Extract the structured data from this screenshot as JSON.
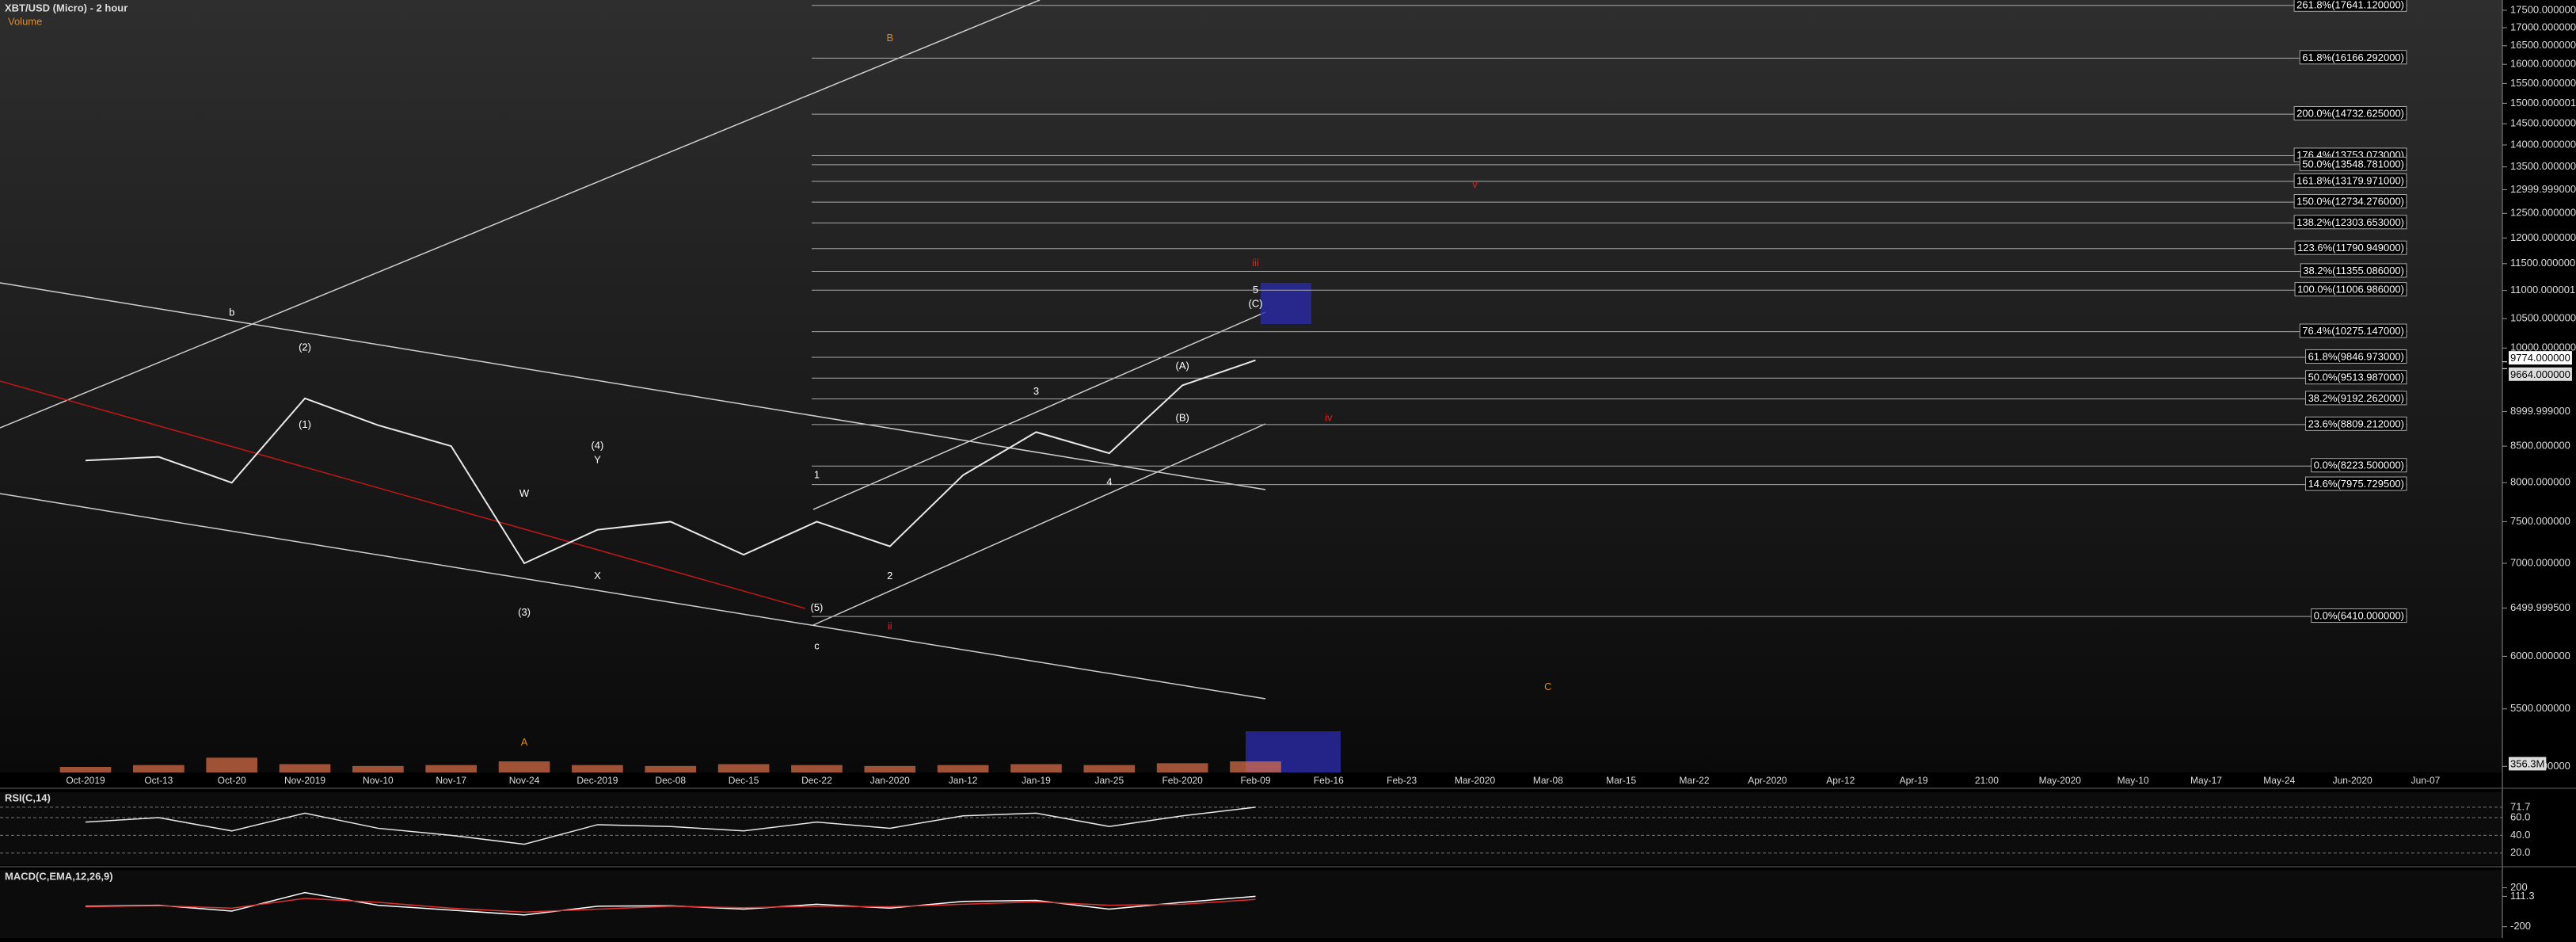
{
  "chart_data": {
    "type": "line",
    "title": "XBT/USD (Micro) - 2 hour",
    "subtitle": "Volume",
    "log_scale": true,
    "categories": [
      "Oct-2019",
      "Oct-13",
      "Oct-20",
      "Nov-2019",
      "Nov-10",
      "Nov-17",
      "Nov-24",
      "Dec-2019",
      "Dec-08",
      "Dec-15",
      "Dec-22",
      "Jan-2020",
      "Jan-12",
      "Jan-19",
      "Jan-25",
      "Feb-2020",
      "Feb-09",
      "Feb-16",
      "Feb-23",
      "Mar-2020",
      "Mar-08",
      "Mar-15",
      "Mar-22",
      "Apr-2020",
      "Apr-12",
      "Apr-19",
      "21:00",
      "May-2020",
      "May-10",
      "May-17",
      "May-24",
      "Jun-2020",
      "Jun-07"
    ],
    "series": [
      {
        "name": "XBT/USD",
        "color": "#e8e8e8",
        "values": [
          8300,
          8350,
          8000,
          9200,
          8800,
          8500,
          7000,
          7400,
          7500,
          7100,
          7500,
          7200,
          8100,
          8700,
          8400,
          9400,
          9800,
          null,
          null,
          null,
          null,
          null,
          null,
          null,
          null,
          null,
          null,
          null,
          null,
          null,
          null,
          null,
          null
        ]
      }
    ],
    "ylim": [
      4950,
      17800
    ],
    "yticks": [
      {
        "value": 17500,
        "label": "17500.000000"
      },
      {
        "value": 17000,
        "label": "17000.000000"
      },
      {
        "value": 16500,
        "label": "16500.000000"
      },
      {
        "value": 16000,
        "label": "16000.000000"
      },
      {
        "value": 15500,
        "label": "15500.000000"
      },
      {
        "value": 15000,
        "label": "15000.000001"
      },
      {
        "value": 14500,
        "label": "14500.000000"
      },
      {
        "value": 14000,
        "label": "14000.000000"
      },
      {
        "value": 13500,
        "label": "13500.000000"
      },
      {
        "value": 12999.999,
        "label": "12999.999000"
      },
      {
        "value": 12500,
        "label": "12500.000000"
      },
      {
        "value": 12000,
        "label": "12000.000000"
      },
      {
        "value": 11500,
        "label": "11500.000000"
      },
      {
        "value": 11000,
        "label": "11000.000001"
      },
      {
        "value": 10500,
        "label": "10500.000000"
      },
      {
        "value": 10000,
        "label": "10000.000000"
      },
      {
        "value": 8999.999,
        "label": "8999.999000"
      },
      {
        "value": 8500,
        "label": "8500.000000"
      },
      {
        "value": 8000,
        "label": "8000.000000"
      },
      {
        "value": 7500,
        "label": "7500.000000"
      },
      {
        "value": 7000,
        "label": "7000.000000"
      },
      {
        "value": 6499.9995,
        "label": "6499.999500"
      },
      {
        "value": 6000,
        "label": "6000.000000"
      },
      {
        "value": 5500,
        "label": "5500.000000"
      },
      {
        "value": 5000,
        "label": "5000.000000"
      }
    ],
    "price_tags": [
      {
        "value": 9774,
        "label": "9774.000000"
      },
      {
        "value": 9664,
        "label": "9664.000000"
      }
    ],
    "fib_levels": [
      {
        "value": 17641.12,
        "label": "261.8%(17641.120000)"
      },
      {
        "value": 16166.292,
        "label": "61.8%(16166.292000)"
      },
      {
        "value": 14732.625,
        "label": "200.0%(14732.625000)"
      },
      {
        "value": 13753.073,
        "label": "176.4%(13753.073000)"
      },
      {
        "value": 13548.781,
        "label": "50.0%(13548.781000)"
      },
      {
        "value": 13179.971,
        "label": "161.8%(13179.971000)"
      },
      {
        "value": 12734.276,
        "label": "150.0%(12734.276000)"
      },
      {
        "value": 12303.653,
        "label": "138.2%(12303.653000)"
      },
      {
        "value": 11790.949,
        "label": "123.6%(11790.949000)"
      },
      {
        "value": 11355.086,
        "label": "38.2%(11355.086000)"
      },
      {
        "value": 11006.986,
        "label": "100.0%(11006.986000)"
      },
      {
        "value": 10275.147,
        "label": "76.4%(10275.147000)"
      },
      {
        "value": 9846.973,
        "label": "61.8%(9846.973000)"
      },
      {
        "value": 9513.987,
        "label": "50.0%(9513.987000)"
      },
      {
        "value": 9192.262,
        "label": "38.2%(9192.262000)"
      },
      {
        "value": 8809.212,
        "label": "23.6%(8809.212000)"
      },
      {
        "value": 8223.5,
        "label": "0.0%(8223.500000)"
      },
      {
        "value": 7975.7295,
        "label": "14.6%(7975.729500)"
      },
      {
        "value": 6410,
        "label": "0.0%(6410.000000)"
      }
    ],
    "annotations": [
      {
        "text": "b",
        "x": "Oct-20",
        "y": 10600,
        "color": "#ffffff"
      },
      {
        "text": "(1)",
        "x": "Nov-2019",
        "y": 8800,
        "color": "#ffffff"
      },
      {
        "text": "(2)",
        "x": "Nov-2019",
        "y": 10000,
        "color": "#ffffff"
      },
      {
        "text": "W",
        "x": "Nov-24",
        "y": 7850,
        "color": "#ffffff"
      },
      {
        "text": "(3)",
        "x": "Nov-24",
        "y": 6450,
        "color": "#ffffff"
      },
      {
        "text": "(4)",
        "x": "Dec-2019",
        "y": 8500,
        "color": "#ffffff"
      },
      {
        "text": "Y",
        "x": "Dec-2019",
        "y": 8300,
        "color": "#ffffff"
      },
      {
        "text": "X",
        "x": "Dec-2019",
        "y": 6850,
        "color": "#ffffff"
      },
      {
        "text": "(5)",
        "x": "Dec-22",
        "y": 6500,
        "color": "#ffffff"
      },
      {
        "text": "c",
        "x": "Dec-22",
        "y": 6100,
        "color": "#ffffff"
      },
      {
        "text": "1",
        "x": "Dec-22",
        "y": 8100,
        "color": "#ffffff"
      },
      {
        "text": "2",
        "x": "Jan-2020",
        "y": 6850,
        "color": "#ffffff"
      },
      {
        "text": "ii",
        "x": "Jan-2020",
        "y": 6300,
        "color": "#e02020"
      },
      {
        "text": "B",
        "x": "Jan-2020",
        "y": 16700,
        "color": "#e08a1a"
      },
      {
        "text": "3",
        "x": "Jan-19",
        "y": 9300,
        "color": "#ffffff"
      },
      {
        "text": "4",
        "x": "Jan-25",
        "y": 8000,
        "color": "#ffffff"
      },
      {
        "text": "(A)",
        "x": "Feb-2020",
        "y": 9700,
        "color": "#ffffff"
      },
      {
        "text": "(B)",
        "x": "Feb-2020",
        "y": 8900,
        "color": "#ffffff"
      },
      {
        "text": "5",
        "x": "Feb-09",
        "y": 11000,
        "color": "#ffffff"
      },
      {
        "text": "(C)",
        "x": "Feb-09",
        "y": 10750,
        "color": "#ffffff"
      },
      {
        "text": "iii",
        "x": "Feb-09",
        "y": 11500,
        "color": "#e02020"
      },
      {
        "text": "iv",
        "x": "Feb-16",
        "y": 8900,
        "color": "#e02020"
      },
      {
        "text": "v",
        "x": "Mar-2020",
        "y": 13100,
        "color": "#e02020"
      },
      {
        "text": "A",
        "x": "Nov-24",
        "y": 5200,
        "color": "#e08a1a"
      },
      {
        "text": "C",
        "x": "Mar-08",
        "y": 5700,
        "color": "#e08a1a"
      }
    ],
    "volume": {
      "color": "#e0704a",
      "values": [
        30,
        40,
        80,
        45,
        35,
        40,
        60,
        40,
        35,
        45,
        40,
        35,
        40,
        45,
        40,
        50,
        60,
        null,
        null,
        null,
        null,
        null,
        null,
        null,
        null,
        null,
        null,
        null,
        null,
        null,
        null,
        null,
        null
      ],
      "ylim": [
        0,
        300
      ],
      "current_label": "356.3M"
    },
    "rsi": {
      "title": "RSI(C,14)",
      "color": "#e8e8e8",
      "ylim": [
        10,
        85
      ],
      "values": [
        55,
        60,
        45,
        65,
        48,
        40,
        30,
        52,
        50,
        45,
        55,
        48,
        62,
        65,
        50,
        62,
        71.7,
        null,
        null,
        null,
        null,
        null,
        null,
        null,
        null,
        null,
        null,
        null,
        null,
        null,
        null,
        null,
        null
      ],
      "yticks": [
        71.7,
        {
          "value": 60,
          "label": "60.0"
        },
        {
          "value": 40,
          "label": "40.0"
        },
        {
          "value": 20,
          "label": "20.0"
        }
      ]
    },
    "macd": {
      "title": "MACD(C,EMA,12,26,9)",
      "ylim": [
        -300,
        350
      ],
      "series": [
        {
          "name": "MACD",
          "color": "#ffffff",
          "values": [
            10,
            20,
            -40,
            150,
            20,
            -30,
            -80,
            10,
            15,
            -20,
            30,
            -10,
            60,
            70,
            -20,
            50,
            111.3,
            null,
            null,
            null,
            null,
            null,
            null,
            null,
            null,
            null,
            null,
            null,
            null,
            null,
            null,
            null,
            null
          ]
        },
        {
          "name": "Signal",
          "color": "#e03030",
          "values": [
            5,
            15,
            -10,
            90,
            50,
            -10,
            -50,
            -20,
            10,
            -5,
            10,
            5,
            30,
            55,
            20,
            30,
            80,
            null,
            null,
            null,
            null,
            null,
            null,
            null,
            null,
            null,
            null,
            null,
            null,
            null,
            null,
            null,
            null
          ]
        }
      ],
      "yticks": [
        200,
        111.3,
        -200
      ]
    }
  }
}
